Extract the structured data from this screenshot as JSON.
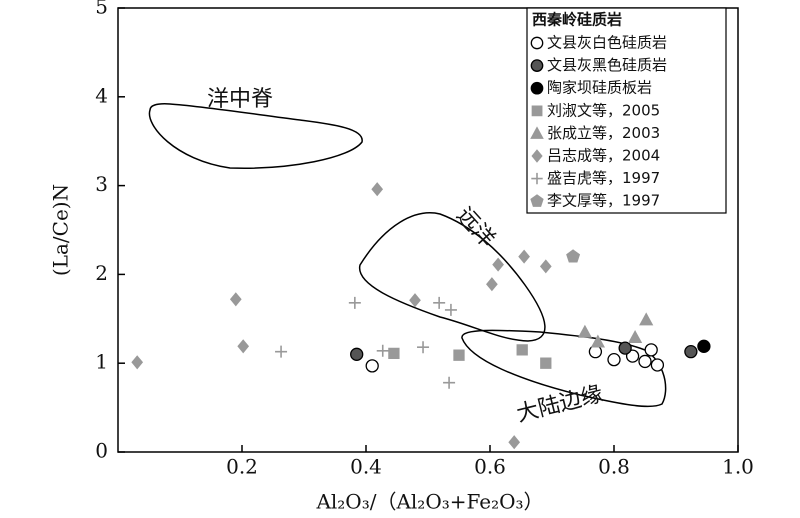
{
  "chart_data": {
    "type": "scatter",
    "xlabel": "Al₂O₃/（Al₂O₃+Fe₂O₃）",
    "ylabel": "(La/Ce)N",
    "legend_title": "西秦岭硅质岩",
    "xlim": [
      0,
      1
    ],
    "ylim": [
      0,
      5
    ],
    "xticks": [
      0.2,
      0.4,
      0.6,
      0.8,
      {
        "value": 1,
        "label": "1.0"
      }
    ],
    "yticks": [
      0,
      1,
      2,
      3,
      4,
      5
    ],
    "annotations": [
      "洋中脊",
      "远洋",
      "大陆边缘"
    ],
    "series": [
      {
        "name": "文县灰白色硅质岩",
        "marker": "circle",
        "color": "#ffffff",
        "edgecolor": "#000000",
        "x": [
          0.41,
          0.77,
          0.8,
          0.83,
          0.85,
          0.86,
          0.87
        ],
        "values": [
          0.97,
          1.13,
          1.04,
          1.08,
          1.02,
          1.15,
          0.98
        ]
      },
      {
        "name": "文县灰黑色硅质岩",
        "marker": "circle",
        "color": "#555555",
        "edgecolor": "#000000",
        "x": [
          0.385,
          0.818,
          0.924
        ],
        "values": [
          1.1,
          1.17,
          1.13
        ]
      },
      {
        "name": "陶家坝硅质板岩",
        "marker": "circle",
        "color": "#000000",
        "edgecolor": "#000000",
        "x": [
          0.945
        ],
        "values": [
          1.19
        ]
      },
      {
        "name": "刘淑文等，2005",
        "marker": "square",
        "color": "#999999",
        "edgecolor": "#999999",
        "x": [
          0.445,
          0.55,
          0.652,
          0.69
        ],
        "values": [
          1.11,
          1.09,
          1.15,
          1.0
        ]
      },
      {
        "name": "张成立等，2003",
        "marker": "triangle",
        "color": "#999999",
        "edgecolor": "#999999",
        "x": [
          0.753,
          0.774,
          0.834,
          0.852
        ],
        "values": [
          1.35,
          1.24,
          1.29,
          1.49
        ]
      },
      {
        "name": "吕志成等，2004",
        "marker": "diamond",
        "color": "#999999",
        "edgecolor": "#999999",
        "x": [
          0.031,
          0.19,
          0.202,
          0.418,
          0.479,
          0.603,
          0.613,
          0.655,
          0.69,
          0.639
        ],
        "values": [
          1.01,
          1.72,
          1.19,
          2.96,
          1.71,
          1.89,
          2.11,
          2.2,
          2.09,
          0.11
        ]
      },
      {
        "name": "盛吉虎等，1997",
        "marker": "plus",
        "color": "#999999",
        "edgecolor": "#999999",
        "x": [
          0.263,
          0.382,
          0.427,
          0.492,
          0.518,
          0.537,
          0.534
        ],
        "values": [
          1.13,
          1.68,
          1.14,
          1.18,
          1.68,
          1.6,
          0.78
        ]
      },
      {
        "name": "李文厚等，1997",
        "marker": "pentagon",
        "color": "#999999",
        "edgecolor": "#999999",
        "x": [
          0.734
        ],
        "values": [
          2.2
        ]
      }
    ]
  }
}
